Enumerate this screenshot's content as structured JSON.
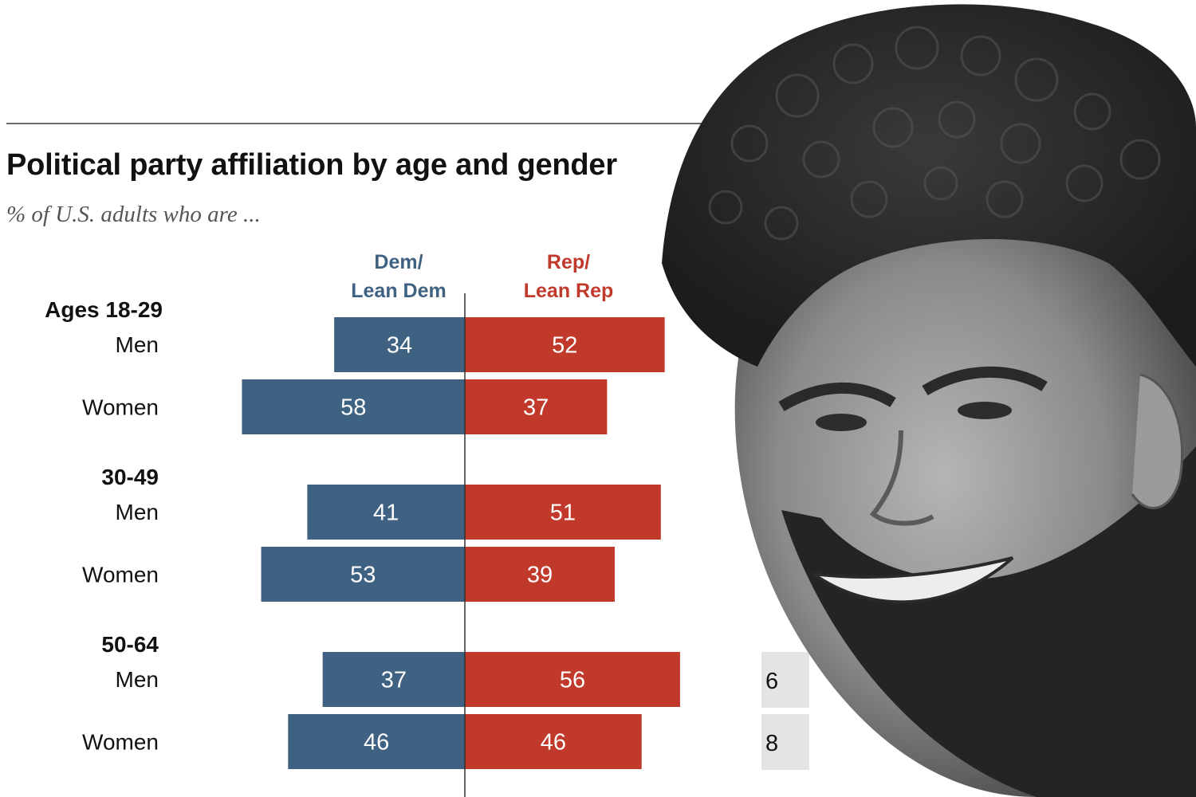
{
  "title": "Political party affiliation by age and gender",
  "subtitle": "% of U.S. adults who are ...",
  "headers": {
    "dem": [
      "Dem/",
      "Lean Dem"
    ],
    "rep": [
      "Rep/",
      "Lean Rep"
    ]
  },
  "colors": {
    "dem": "#3f6283",
    "rep": "#c0392b",
    "side_box": "#e4e4e4"
  },
  "side_values_partial": [
    "6",
    "8"
  ],
  "chart_data": {
    "type": "bar",
    "orientation": "horizontal-diverging",
    "groups": [
      {
        "label": "Ages 18-29",
        "rows": [
          {
            "label": "Men",
            "dem": 34,
            "rep": 52
          },
          {
            "label": "Women",
            "dem": 58,
            "rep": 37
          }
        ]
      },
      {
        "label": "30-49",
        "rows": [
          {
            "label": "Men",
            "dem": 41,
            "rep": 51
          },
          {
            "label": "Women",
            "dem": 53,
            "rep": 39
          }
        ]
      },
      {
        "label": "50-64",
        "rows": [
          {
            "label": "Men",
            "dem": 37,
            "rep": 56
          },
          {
            "label": "Women",
            "dem": 46,
            "rep": 46
          }
        ]
      }
    ],
    "series": [
      {
        "name": "Dem/ Lean Dem"
      },
      {
        "name": "Rep/ Lean Rep"
      }
    ]
  }
}
